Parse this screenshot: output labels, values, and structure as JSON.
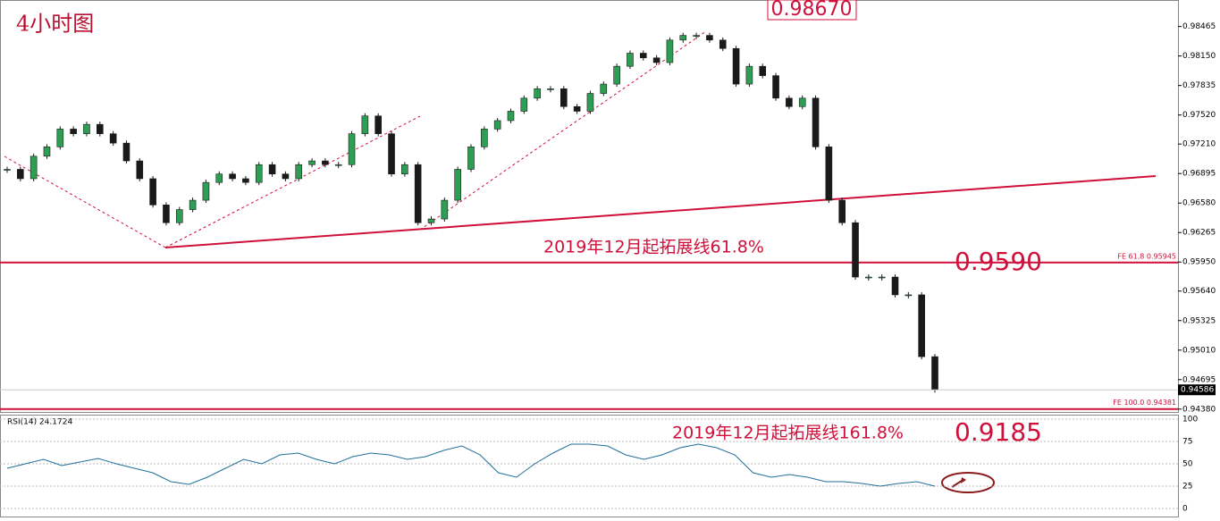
{
  "chart_data": {
    "type": "candlestick",
    "title": "4小时图",
    "values": [
      0.9694,
      0.9684,
      0.9708,
      0.9718,
      0.9737,
      0.9732,
      0.9742,
      0.9732,
      0.9722,
      0.9703,
      0.9684,
      0.9656,
      0.9637,
      0.9651,
      0.9661,
      0.968,
      0.9689,
      0.9684,
      0.968,
      0.9699,
      0.9689,
      0.9684,
      0.9699,
      0.9703,
      0.9699,
      0.9699,
      0.9732,
      0.9751,
      0.9732,
      0.9689,
      0.9699,
      0.9637,
      0.9641,
      0.9661,
      0.9694,
      0.9718,
      0.9737,
      0.9746,
      0.9756,
      0.977,
      0.978,
      0.978,
      0.9761,
      0.9756,
      0.9775,
      0.9785,
      0.9804,
      0.9818,
      0.9813,
      0.9808,
      0.9832,
      0.9837,
      0.9837,
      0.9832,
      0.9823,
      0.9785,
      0.9804,
      0.9794,
      0.977,
      0.9761,
      0.977,
      0.9718,
      0.9661,
      0.9637,
      0.9579,
      0.9579,
      0.9579,
      0.956,
      0.956,
      0.9494,
      0.94586
    ],
    "up_color": "#2e9e55",
    "down_color": "#1a1a1a",
    "ylim": [
      0.9434,
      0.987
    ],
    "yticks": [
      0.98465,
      {
        "value": 0.9815,
        "label": "0.98150"
      },
      0.97835,
      {
        "value": 0.9752,
        "label": "0.97520"
      },
      {
        "value": 0.9721,
        "label": "0.97210"
      },
      0.96895,
      {
        "value": 0.9658,
        "label": "0.96580"
      },
      0.96265,
      {
        "value": 0.9595,
        "label": "0.95950"
      },
      {
        "value": 0.9564,
        "label": "0.95640"
      },
      0.95325,
      {
        "value": 0.9501,
        "label": "0.95010"
      },
      0.94695,
      {
        "value": 0.9438,
        "label": "0.94380"
      }
    ],
    "current_price": 0.94586,
    "levels": [
      {
        "value": 0.95945,
        "label": "FE 61.8  0.95945"
      },
      {
        "value": 0.94381,
        "label": "FE 100.0  0.94381"
      }
    ],
    "level_color": "#d0103a",
    "annotations": {
      "high_box": "0.98670",
      "ext_618": "2019年12月起拓展线61.8%",
      "ext_618_price": "0.9590",
      "ext_1618": "2019年12月起拓展线161.8%",
      "ext_1618_price": "0.9185"
    },
    "rsi": {
      "title": "RSI(14) 24.1724",
      "color": "#1f6f9a",
      "values": [
        45,
        50,
        55,
        48,
        52,
        56,
        50,
        45,
        40,
        30,
        27,
        35,
        45,
        55,
        50,
        60,
        62,
        55,
        50,
        58,
        62,
        60,
        55,
        58,
        65,
        70,
        60,
        40,
        35,
        50,
        62,
        72,
        72,
        70,
        60,
        55,
        60,
        68,
        72,
        68,
        60,
        40,
        35,
        38,
        35,
        30,
        30,
        28,
        25,
        28,
        30,
        25
      ],
      "ylim": [
        0,
        100
      ],
      "yticks": [
        100,
        75,
        50,
        25,
        0
      ]
    }
  }
}
